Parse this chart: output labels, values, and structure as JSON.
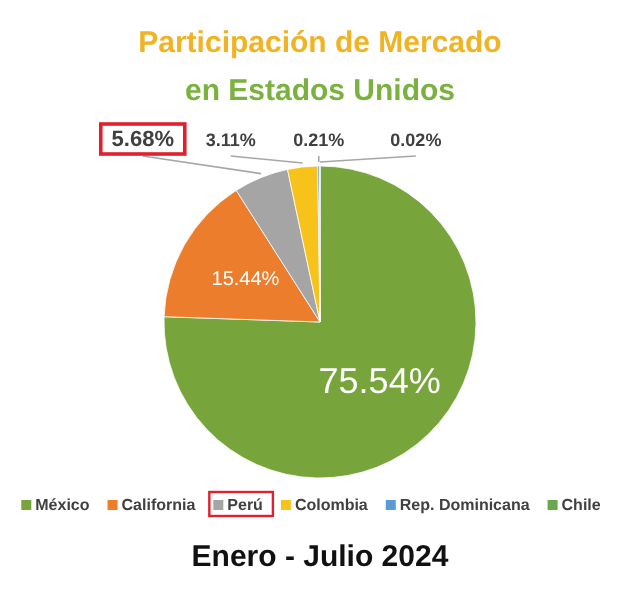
{
  "chart_data": {
    "type": "pie",
    "title": "Participación de Mercado en Estados Unidos",
    "categories": [
      "México",
      "California",
      "Perú",
      "Colombia",
      "Rep. Dominicana",
      "Chile"
    ],
    "values": [
      75.54,
      15.44,
      5.68,
      3.11,
      0.21,
      0.02
    ],
    "colors": [
      "#78a53b",
      "#ec7d2c",
      "#a5a5a5",
      "#f7c21a",
      "#5b9bd5",
      "#6aa84f"
    ],
    "value_labels": [
      "75.54%",
      "15.44%",
      "5.68%",
      "3.11%",
      "0.21%",
      "0.02%"
    ],
    "legend": "bottom",
    "annotations": [
      "Enero - Julio 2024"
    ]
  }
}
